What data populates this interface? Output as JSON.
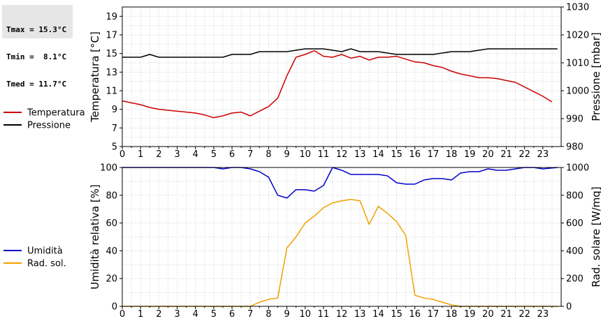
{
  "stats": {
    "tmax": "Tmax = 15.3°C",
    "tmin": "Tmin =  8.1°C",
    "tmed": "Tmed = 11.7°C"
  },
  "chart_data": [
    {
      "type": "line",
      "x_ticks": [
        "0",
        "1",
        "2",
        "3",
        "4",
        "5",
        "6",
        "7",
        "8",
        "9",
        "10",
        "11",
        "12",
        "13",
        "14",
        "15",
        "16",
        "17",
        "18",
        "19",
        "20",
        "21",
        "22",
        "23"
      ],
      "xlim": [
        0,
        24
      ],
      "grid": true,
      "legend_position": "left",
      "left_axis": {
        "label": "Temperatura [°C]",
        "ylim": [
          5,
          20
        ],
        "ticks": [
          "5",
          "7",
          "9",
          "11",
          "13",
          "15",
          "17",
          "19"
        ]
      },
      "right_axis": {
        "label": "Pressione [mbar]",
        "ylim": [
          980,
          1030
        ],
        "ticks": [
          "980",
          "990",
          "1000",
          "1010",
          "1020",
          "1030"
        ]
      },
      "series": [
        {
          "name": "Temperatura",
          "axis": "left",
          "color": "#cc0000",
          "x": [
            0,
            0.5,
            1,
            1.5,
            2,
            2.5,
            3,
            3.5,
            4,
            4.5,
            5,
            5.5,
            6,
            6.5,
            7,
            7.5,
            8,
            8.5,
            9,
            9.5,
            10,
            10.5,
            11,
            11.5,
            12,
            12.5,
            13,
            13.5,
            14,
            14.5,
            15,
            15.5,
            16,
            16.5,
            17,
            17.5,
            18,
            18.5,
            19,
            19.5,
            20,
            20.5,
            21,
            21.5,
            22,
            22.5,
            23,
            23.5
          ],
          "y": [
            9.9,
            9.7,
            9.5,
            9.2,
            9.0,
            8.9,
            8.8,
            8.7,
            8.6,
            8.4,
            8.1,
            8.3,
            8.6,
            8.7,
            8.3,
            8.8,
            9.3,
            10.2,
            12.6,
            14.6,
            14.9,
            15.3,
            14.7,
            14.6,
            14.9,
            14.5,
            14.7,
            14.3,
            14.6,
            14.6,
            14.7,
            14.4,
            14.1,
            14.0,
            13.7,
            13.5,
            13.1,
            12.8,
            12.6,
            12.4,
            12.4,
            12.3,
            12.1,
            11.9,
            11.4,
            10.9,
            10.4,
            9.8
          ]
        },
        {
          "name": "Pressione",
          "axis": "right",
          "color": "#000000",
          "x": [
            0,
            1,
            1.5,
            2,
            3,
            4,
            5,
            5.5,
            6,
            7,
            7.5,
            8,
            9,
            10,
            11,
            12,
            12.5,
            13,
            14,
            15,
            16,
            17,
            18,
            19,
            20,
            21,
            22,
            23,
            23.8
          ],
          "y": [
            1012.0,
            1012.0,
            1013.0,
            1012.0,
            1012.0,
            1012.0,
            1012.0,
            1012.0,
            1013.0,
            1013.0,
            1014.0,
            1014.0,
            1014.0,
            1015.0,
            1015.0,
            1014.0,
            1015.0,
            1014.0,
            1014.0,
            1013.0,
            1013.0,
            1013.0,
            1014.0,
            1014.0,
            1015.0,
            1015.0,
            1015.0,
            1015.0,
            1015.0
          ]
        }
      ]
    },
    {
      "type": "line",
      "x_ticks": [
        "0",
        "1",
        "2",
        "3",
        "4",
        "5",
        "6",
        "7",
        "8",
        "9",
        "10",
        "11",
        "12",
        "13",
        "14",
        "15",
        "16",
        "17",
        "18",
        "19",
        "20",
        "21",
        "22",
        "23"
      ],
      "xlim": [
        0,
        24
      ],
      "grid": true,
      "legend_position": "left",
      "left_axis": {
        "label": "Umidità relativa [%]",
        "ylim": [
          0,
          100
        ],
        "ticks": [
          "0",
          "20",
          "40",
          "60",
          "80",
          "100"
        ]
      },
      "right_axis": {
        "label": "Rad. solare [W/mq]",
        "ylim": [
          0,
          1000
        ],
        "ticks": [
          "0",
          "200",
          "400",
          "600",
          "800",
          "1000"
        ]
      },
      "series": [
        {
          "name": "Umidità",
          "axis": "left",
          "color": "#0000cc",
          "x": [
            0,
            1,
            2,
            3,
            4,
            5,
            5.5,
            6,
            6.5,
            7,
            7.5,
            8,
            8.5,
            9,
            9.5,
            10,
            10.5,
            11,
            11.5,
            12,
            12.5,
            13,
            13.5,
            14,
            14.5,
            15,
            15.5,
            16,
            16.5,
            17,
            17.5,
            18,
            18.5,
            19,
            19.5,
            20,
            20.5,
            21,
            21.5,
            22,
            22.5,
            23,
            23.8
          ],
          "y": [
            100,
            100,
            100,
            100,
            100,
            100,
            99,
            100,
            100,
            99,
            97,
            93,
            80,
            78,
            84,
            84,
            83,
            87,
            100,
            98,
            95,
            95,
            95,
            95,
            94,
            89,
            88,
            88,
            91,
            92,
            92,
            91,
            96,
            97,
            97,
            99,
            98,
            98,
            99,
            100,
            100,
            99,
            100
          ]
        },
        {
          "name": "Rad. sol.",
          "axis": "right",
          "color": "#f0a000",
          "x": [
            0,
            1,
            2,
            3,
            4,
            5,
            6,
            7,
            7.5,
            8,
            8.5,
            9,
            9.5,
            10,
            10.5,
            11,
            11.5,
            12,
            12.5,
            13,
            13.5,
            14,
            14.5,
            15,
            15.5,
            16,
            16.5,
            17,
            17.5,
            18,
            18.5,
            19,
            20,
            21,
            22,
            23,
            23.8
          ],
          "y": [
            0,
            0,
            0,
            0,
            0,
            0,
            0,
            0,
            30,
            50,
            60,
            420,
            500,
            600,
            650,
            710,
            745,
            760,
            770,
            760,
            590,
            720,
            670,
            610,
            510,
            80,
            60,
            50,
            30,
            10,
            0,
            0,
            0,
            0,
            0,
            0,
            0
          ]
        }
      ]
    }
  ]
}
